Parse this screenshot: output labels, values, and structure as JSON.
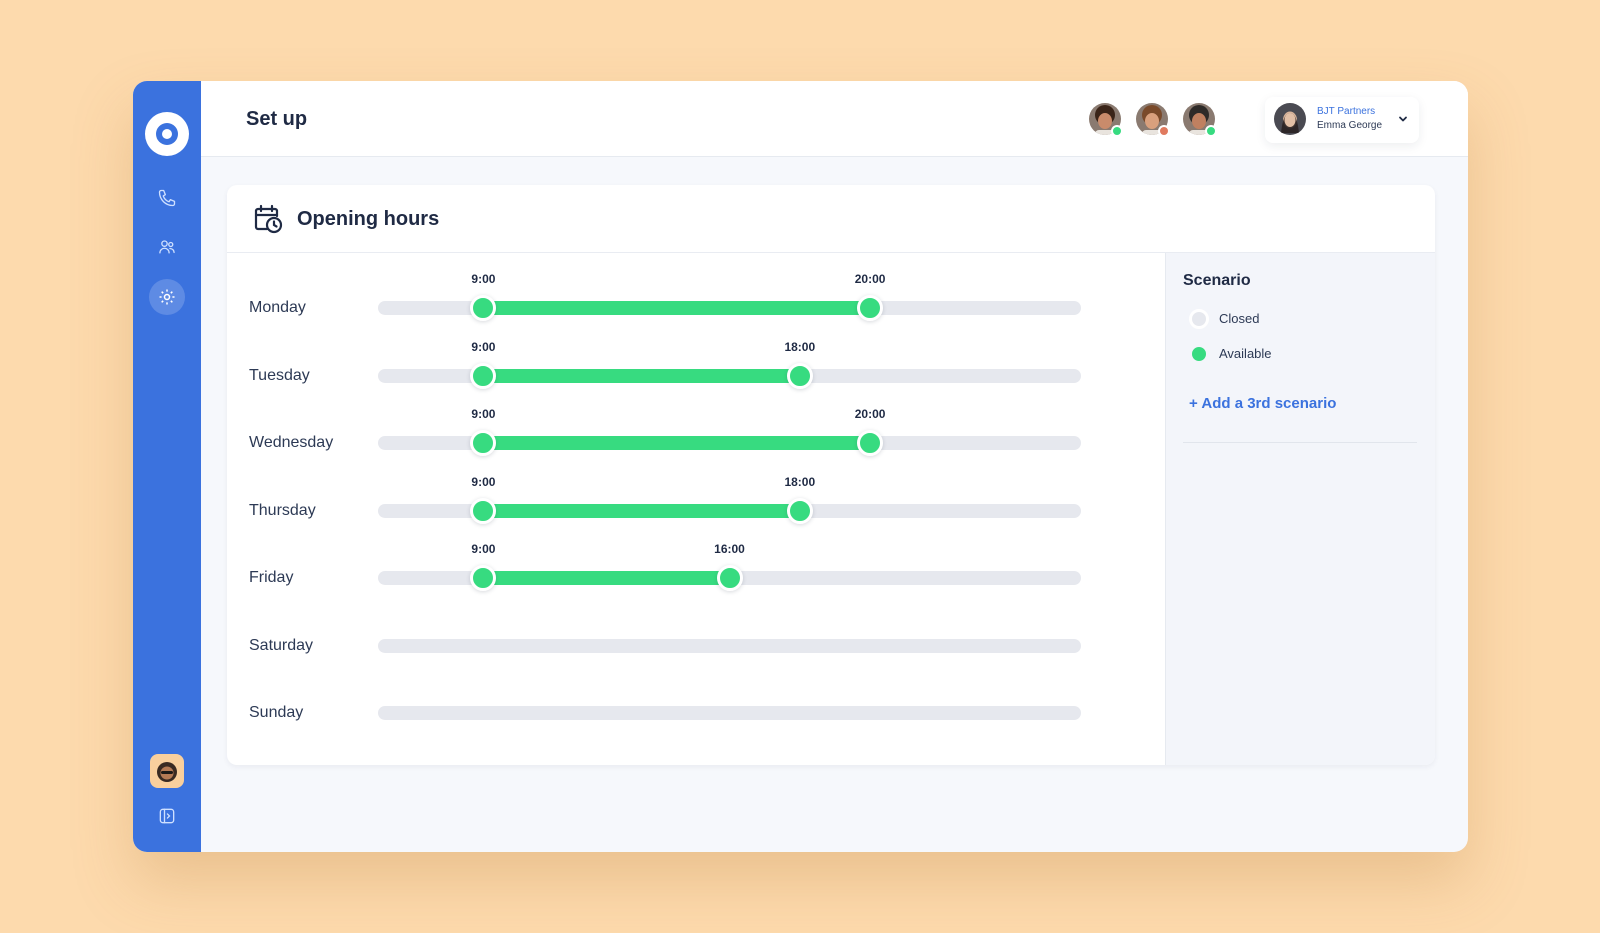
{
  "header": {
    "title": "Set up",
    "account": {
      "company": "BJT Partners",
      "name": "Emma George"
    },
    "team_members": [
      {
        "status_color": "#37DB80",
        "skin": "#C98B6B",
        "hair": "#3A2418"
      },
      {
        "status_color": "#E07A5F",
        "skin": "#D9A07D",
        "hair": "#7A4A2A"
      },
      {
        "status_color": "#37DB80",
        "skin": "#C08060",
        "hair": "#2E2A28"
      }
    ]
  },
  "sidebar": {
    "items": [
      {
        "icon": "phone-icon"
      },
      {
        "icon": "contacts-icon"
      },
      {
        "icon": "gear-icon",
        "active": true
      }
    ],
    "bottom_icon": "expand-panel-icon"
  },
  "card": {
    "title": "Opening hours",
    "icon": "calendar-clock-icon"
  },
  "schedule": {
    "range_start_hour": 6,
    "range_end_hour": 26,
    "days": [
      {
        "name": "Monday",
        "open": "9:00",
        "close": "20:00",
        "open_hour": 9,
        "close_hour": 20
      },
      {
        "name": "Tuesday",
        "open": "9:00",
        "close": "18:00",
        "open_hour": 9,
        "close_hour": 18
      },
      {
        "name": "Wednesday",
        "open": "9:00",
        "close": "20:00",
        "open_hour": 9,
        "close_hour": 20
      },
      {
        "name": "Thursday",
        "open": "9:00",
        "close": "18:00",
        "open_hour": 9,
        "close_hour": 18
      },
      {
        "name": "Friday",
        "open": "9:00",
        "close": "16:00",
        "open_hour": 9,
        "close_hour": 16
      },
      {
        "name": "Saturday",
        "open": null,
        "close": null
      },
      {
        "name": "Sunday",
        "open": null,
        "close": null
      }
    ]
  },
  "scenario": {
    "title": "Scenario",
    "options": [
      {
        "label": "Closed",
        "color": "#E6E8EE"
      },
      {
        "label": "Available",
        "color": "#37DB80"
      }
    ],
    "add_label": "+ Add a 3rd scenario"
  },
  "colors": {
    "accent": "#3B72DE",
    "available": "#37DB80",
    "closed": "#E6E8EE"
  }
}
